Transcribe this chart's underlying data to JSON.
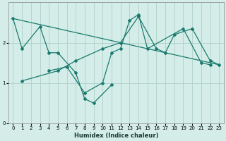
{
  "xlabel": "Humidex (Indice chaleur)",
  "bg_color": "#d4ede8",
  "grid_color": "#aed0c8",
  "line_color": "#1a7a6e",
  "xlim": [
    -0.5,
    23.5
  ],
  "ylim": [
    0,
    3.0
  ],
  "yticks": [
    0,
    1,
    2
  ],
  "xticks": [
    0,
    1,
    2,
    3,
    4,
    5,
    6,
    7,
    8,
    9,
    10,
    11,
    12,
    13,
    14,
    15,
    16,
    17,
    18,
    19,
    20,
    21,
    22,
    23
  ],
  "line1_x": [
    0,
    1,
    3,
    4,
    5,
    7,
    8,
    9,
    11
  ],
  "line1_y": [
    2.6,
    1.85,
    2.4,
    1.75,
    1.75,
    1.25,
    0.6,
    0.5,
    0.95
  ],
  "line2_x": [
    4,
    6,
    8,
    10,
    11,
    12,
    13,
    14,
    15,
    19,
    21,
    22
  ],
  "line2_y": [
    1.3,
    1.4,
    0.75,
    1.0,
    1.75,
    1.85,
    2.55,
    2.7,
    1.85,
    2.35,
    1.5,
    1.45
  ],
  "line3_x": [
    1,
    5,
    7,
    10,
    12,
    14,
    16,
    17,
    18,
    20,
    22,
    23
  ],
  "line3_y": [
    1.05,
    1.3,
    1.55,
    1.85,
    2.0,
    2.65,
    1.85,
    1.75,
    2.2,
    2.35,
    1.55,
    1.45
  ],
  "line4_x": [
    0,
    23
  ],
  "line4_y": [
    2.6,
    1.45
  ]
}
